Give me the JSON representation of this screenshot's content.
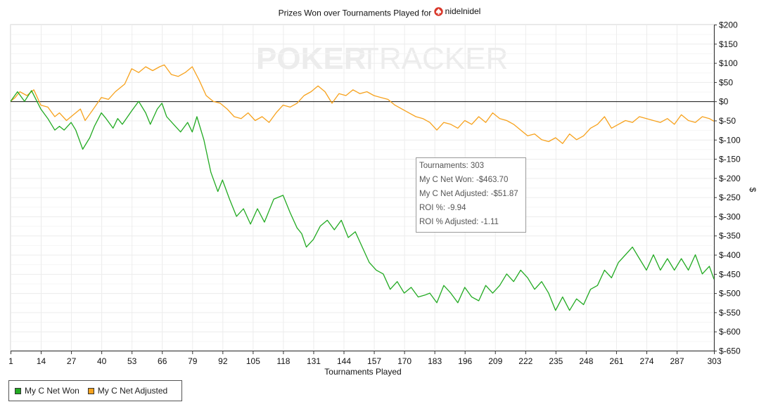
{
  "title_prefix": "Prizes Won over Tournaments Played for",
  "player_name": "nidelnidel",
  "watermark": {
    "left": "POKER",
    "right": "TRACKER"
  },
  "tooltip": {
    "line1": "Tournaments: 303",
    "line2": "My C Net Won: -$463.70",
    "line3": "My C Net Adjusted: -$51.87",
    "line4": "ROI %: -9.94",
    "line5": "ROI % Adjusted: -1.11"
  },
  "legend": [
    {
      "label": "My C Net Won",
      "color": "#22aa22"
    },
    {
      "label": "My C Net Adjusted",
      "color": "#f7a21d"
    }
  ],
  "chart_data": {
    "type": "line",
    "title": "Prizes Won over Tournaments Played for nidelnidel",
    "xlabel": "Tournaments Played",
    "ylabel": "$",
    "xlim": [
      1,
      303
    ],
    "ylim": [
      -650,
      200
    ],
    "grid": true,
    "legend_position": "bottom-left",
    "x_ticks": [
      1,
      14,
      27,
      40,
      53,
      66,
      79,
      92,
      105,
      118,
      131,
      144,
      157,
      170,
      183,
      196,
      209,
      222,
      235,
      248,
      261,
      274,
      287,
      303
    ],
    "y_ticks": [
      200,
      150,
      100,
      50,
      0,
      -50,
      -100,
      -150,
      -200,
      -250,
      -300,
      -350,
      -400,
      -450,
      -500,
      -550,
      -600,
      -650
    ],
    "y_tick_labels": [
      "$200",
      "$150",
      "$100",
      "$50",
      "$0",
      "$-50",
      "$-100",
      "$-150",
      "$-200",
      "$-250",
      "$-300",
      "$-350",
      "$-400",
      "$-450",
      "$-500",
      "$-550",
      "$-600",
      "$-650"
    ],
    "series": [
      {
        "name": "My C Net Won",
        "color": "#22aa22",
        "points": [
          [
            1,
            0
          ],
          [
            4,
            25
          ],
          [
            7,
            0
          ],
          [
            10,
            28
          ],
          [
            14,
            -20
          ],
          [
            17,
            -45
          ],
          [
            20,
            -75
          ],
          [
            22,
            -65
          ],
          [
            24,
            -75
          ],
          [
            27,
            -55
          ],
          [
            29,
            -75
          ],
          [
            32,
            -125
          ],
          [
            35,
            -95
          ],
          [
            37,
            -65
          ],
          [
            40,
            -30
          ],
          [
            42,
            -45
          ],
          [
            45,
            -70
          ],
          [
            47,
            -45
          ],
          [
            49,
            -60
          ],
          [
            53,
            -25
          ],
          [
            56,
            0
          ],
          [
            59,
            -30
          ],
          [
            61,
            -60
          ],
          [
            64,
            -20
          ],
          [
            66,
            -5
          ],
          [
            68,
            -40
          ],
          [
            71,
            -60
          ],
          [
            74,
            -80
          ],
          [
            77,
            -55
          ],
          [
            79,
            -80
          ],
          [
            81,
            -40
          ],
          [
            84,
            -100
          ],
          [
            87,
            -185
          ],
          [
            90,
            -235
          ],
          [
            92,
            -205
          ],
          [
            95,
            -255
          ],
          [
            98,
            -300
          ],
          [
            101,
            -280
          ],
          [
            104,
            -320
          ],
          [
            107,
            -280
          ],
          [
            110,
            -315
          ],
          [
            114,
            -255
          ],
          [
            118,
            -245
          ],
          [
            121,
            -290
          ],
          [
            124,
            -330
          ],
          [
            126,
            -345
          ],
          [
            128,
            -380
          ],
          [
            131,
            -360
          ],
          [
            134,
            -325
          ],
          [
            137,
            -310
          ],
          [
            140,
            -335
          ],
          [
            143,
            -310
          ],
          [
            146,
            -355
          ],
          [
            149,
            -340
          ],
          [
            152,
            -380
          ],
          [
            155,
            -420
          ],
          [
            158,
            -440
          ],
          [
            161,
            -450
          ],
          [
            164,
            -490
          ],
          [
            167,
            -470
          ],
          [
            170,
            -500
          ],
          [
            173,
            -485
          ],
          [
            176,
            -510
          ],
          [
            179,
            -505
          ],
          [
            181,
            -500
          ],
          [
            184,
            -525
          ],
          [
            187,
            -480
          ],
          [
            190,
            -500
          ],
          [
            193,
            -525
          ],
          [
            196,
            -485
          ],
          [
            199,
            -510
          ],
          [
            202,
            -520
          ],
          [
            205,
            -480
          ],
          [
            208,
            -500
          ],
          [
            211,
            -480
          ],
          [
            214,
            -450
          ],
          [
            217,
            -470
          ],
          [
            220,
            -440
          ],
          [
            223,
            -460
          ],
          [
            226,
            -490
          ],
          [
            229,
            -470
          ],
          [
            232,
            -500
          ],
          [
            235,
            -545
          ],
          [
            238,
            -510
          ],
          [
            241,
            -545
          ],
          [
            244,
            -515
          ],
          [
            247,
            -530
          ],
          [
            250,
            -490
          ],
          [
            253,
            -480
          ],
          [
            256,
            -440
          ],
          [
            259,
            -460
          ],
          [
            262,
            -420
          ],
          [
            265,
            -400
          ],
          [
            268,
            -380
          ],
          [
            271,
            -410
          ],
          [
            274,
            -440
          ],
          [
            277,
            -400
          ],
          [
            280,
            -440
          ],
          [
            283,
            -410
          ],
          [
            286,
            -440
          ],
          [
            289,
            -410
          ],
          [
            292,
            -440
          ],
          [
            295,
            -400
          ],
          [
            298,
            -450
          ],
          [
            301,
            -430
          ],
          [
            303,
            -463.7
          ]
        ]
      },
      {
        "name": "My C Net Adjusted",
        "color": "#f7a21d",
        "points": [
          [
            1,
            0
          ],
          [
            3,
            10
          ],
          [
            5,
            25
          ],
          [
            8,
            15
          ],
          [
            11,
            30
          ],
          [
            14,
            -10
          ],
          [
            17,
            -15
          ],
          [
            20,
            -40
          ],
          [
            22,
            -30
          ],
          [
            25,
            -50
          ],
          [
            28,
            -35
          ],
          [
            31,
            -20
          ],
          [
            33,
            -50
          ],
          [
            36,
            -25
          ],
          [
            40,
            10
          ],
          [
            43,
            5
          ],
          [
            46,
            25
          ],
          [
            50,
            45
          ],
          [
            53,
            85
          ],
          [
            56,
            75
          ],
          [
            59,
            90
          ],
          [
            62,
            80
          ],
          [
            65,
            90
          ],
          [
            67,
            95
          ],
          [
            70,
            70
          ],
          [
            73,
            65
          ],
          [
            76,
            75
          ],
          [
            79,
            90
          ],
          [
            82,
            55
          ],
          [
            85,
            15
          ],
          [
            88,
            0
          ],
          [
            91,
            -5
          ],
          [
            94,
            -20
          ],
          [
            97,
            -40
          ],
          [
            100,
            -45
          ],
          [
            103,
            -30
          ],
          [
            106,
            -50
          ],
          [
            109,
            -40
          ],
          [
            112,
            -55
          ],
          [
            115,
            -30
          ],
          [
            118,
            -10
          ],
          [
            121,
            -15
          ],
          [
            124,
            -5
          ],
          [
            127,
            15
          ],
          [
            130,
            25
          ],
          [
            133,
            40
          ],
          [
            136,
            25
          ],
          [
            139,
            -5
          ],
          [
            142,
            20
          ],
          [
            145,
            15
          ],
          [
            148,
            30
          ],
          [
            151,
            20
          ],
          [
            154,
            25
          ],
          [
            157,
            15
          ],
          [
            160,
            10
          ],
          [
            163,
            5
          ],
          [
            166,
            -10
          ],
          [
            169,
            -20
          ],
          [
            172,
            -30
          ],
          [
            175,
            -40
          ],
          [
            178,
            -45
          ],
          [
            181,
            -55
          ],
          [
            184,
            -75
          ],
          [
            187,
            -55
          ],
          [
            190,
            -60
          ],
          [
            193,
            -70
          ],
          [
            196,
            -50
          ],
          [
            199,
            -60
          ],
          [
            202,
            -40
          ],
          [
            205,
            -55
          ],
          [
            208,
            -30
          ],
          [
            211,
            -45
          ],
          [
            214,
            -50
          ],
          [
            217,
            -60
          ],
          [
            220,
            -75
          ],
          [
            223,
            -90
          ],
          [
            226,
            -85
          ],
          [
            229,
            -100
          ],
          [
            232,
            -105
          ],
          [
            235,
            -95
          ],
          [
            238,
            -110
          ],
          [
            241,
            -85
          ],
          [
            244,
            -100
          ],
          [
            247,
            -90
          ],
          [
            250,
            -70
          ],
          [
            253,
            -60
          ],
          [
            256,
            -40
          ],
          [
            259,
            -70
          ],
          [
            262,
            -60
          ],
          [
            265,
            -50
          ],
          [
            268,
            -55
          ],
          [
            271,
            -40
          ],
          [
            274,
            -45
          ],
          [
            277,
            -50
          ],
          [
            280,
            -55
          ],
          [
            283,
            -45
          ],
          [
            286,
            -60
          ],
          [
            289,
            -35
          ],
          [
            292,
            -50
          ],
          [
            295,
            -55
          ],
          [
            298,
            -40
          ],
          [
            301,
            -45
          ],
          [
            303,
            -51.87
          ]
        ]
      }
    ]
  }
}
